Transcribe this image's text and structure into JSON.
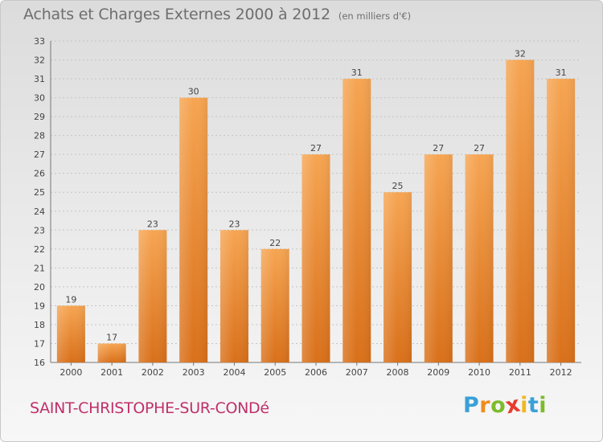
{
  "header": {
    "title": "Achats et Charges Externes 2000 à 2012",
    "unit": "(en milliers d'€)"
  },
  "footer": {
    "commune": "SAINT-CHRISTOPHE-SUR-CONDé",
    "logo": {
      "letters": [
        "P",
        "r",
        "o",
        "x",
        "i",
        "t",
        "i"
      ],
      "colors": [
        "#3aa0d8",
        "#f08c1e",
        "#7dbb2c",
        "#e83b2b",
        "#f0b81e",
        "#3aa0d8",
        "#7dbb2c"
      ]
    }
  },
  "colors": {
    "bar_top": "#f6a552",
    "bar_bottom": "#d9701a",
    "axis_text": "#444444",
    "grid": "#c4c4c4",
    "title": "#6e6e6e",
    "commune": "#c0306a"
  },
  "chart_data": {
    "type": "bar",
    "categories": [
      "2000",
      "2001",
      "2002",
      "2003",
      "2004",
      "2005",
      "2006",
      "2007",
      "2008",
      "2009",
      "2010",
      "2011",
      "2012"
    ],
    "values": [
      19,
      17,
      23,
      30,
      23,
      22,
      27,
      31,
      25,
      27,
      27,
      32,
      31
    ],
    "title": "Achats et Charges Externes 2000 à 2012",
    "xlabel": "",
    "ylabel": "",
    "ylim": [
      16,
      33
    ],
    "yticks": [
      16,
      17,
      18,
      19,
      20,
      21,
      22,
      23,
      24,
      25,
      26,
      27,
      28,
      29,
      30,
      31,
      32,
      33
    ],
    "grid": true,
    "data_labels": true
  }
}
